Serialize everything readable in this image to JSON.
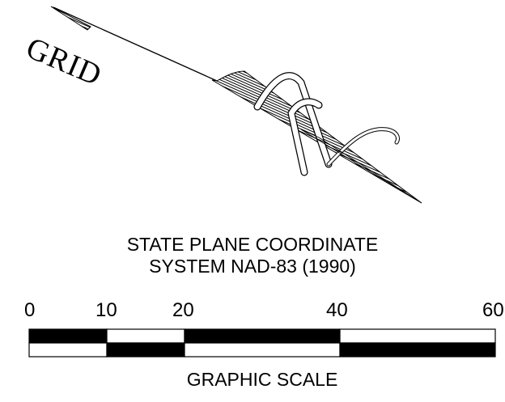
{
  "north_arrow": {
    "grid_label": "GRID"
  },
  "datum": {
    "line1": "STATE PLANE COORDINATE",
    "line2": "SYSTEM NAD-83 (1990)"
  },
  "scale": {
    "ticks": [
      "0",
      "10",
      "20",
      "40",
      "60"
    ],
    "caption": "GRAPHIC SCALE"
  }
}
